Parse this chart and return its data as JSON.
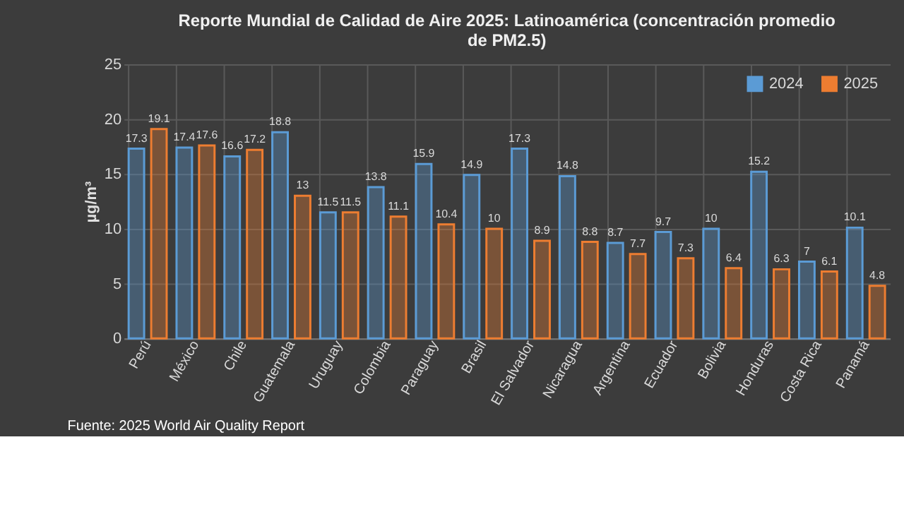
{
  "chart_data": {
    "type": "bar",
    "title": "Reporte Mundial de Calidad de Aire 2025: Latinoamérica (concentración promedio de PM2.5)",
    "ylabel": "µg/m³",
    "categories": [
      "Perú",
      "México",
      "Chile",
      "Guatemala",
      "Uruguay",
      "Colombia",
      "Paraguay",
      "Brasil",
      "El Salvador",
      "Nicaragua",
      "Argentina",
      "Ecuador",
      "Bolivia",
      "Honduras",
      "Costa Rica",
      "Panamá"
    ],
    "series": [
      {
        "name": "2024",
        "color": "#5b9bd5",
        "values": [
          17.3,
          17.4,
          16.6,
          18.8,
          11.5,
          13.8,
          15.9,
          14.9,
          17.3,
          14.8,
          8.7,
          9.7,
          10,
          15.2,
          7,
          10.1
        ]
      },
      {
        "name": "2025",
        "color": "#ed7d31",
        "values": [
          19.1,
          17.6,
          17.2,
          13,
          11.5,
          11.1,
          10.4,
          10,
          8.9,
          8.8,
          7.7,
          7.3,
          6.4,
          6.3,
          6.1,
          4.8
        ]
      }
    ],
    "ylim": [
      0,
      25
    ],
    "yticks": [
      0,
      5,
      10,
      15,
      20,
      25
    ],
    "grid": true,
    "legend": "top right",
    "data_labels": true,
    "annotations": [
      "Fuente: 2025 World Air Quality  Report"
    ]
  }
}
